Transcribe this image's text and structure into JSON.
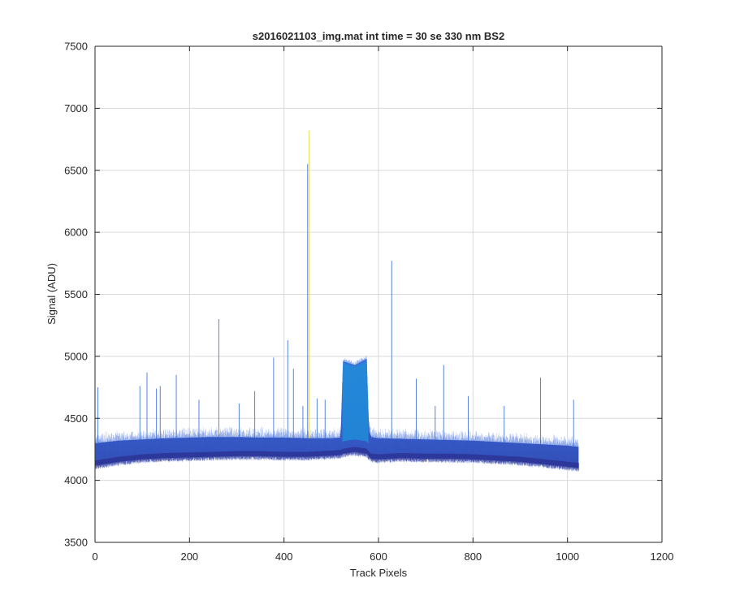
{
  "chart_data": {
    "type": "line",
    "title": "s2016021103_img.mat int time = 30 se  330 nm BS2",
    "xlabel": "Track Pixels",
    "ylabel": "Signal (ADU)",
    "xlim": [
      0,
      1200
    ],
    "ylim": [
      3500,
      7500
    ],
    "x_ticks": [
      0,
      200,
      400,
      600,
      800,
      1000,
      1200
    ],
    "y_ticks": [
      3500,
      4000,
      4500,
      5000,
      5500,
      6000,
      6500,
      7000,
      7500
    ],
    "x_tick_labels": [
      "0",
      "200",
      "400",
      "600",
      "800",
      "1000",
      "1200"
    ],
    "y_tick_labels": [
      "3500",
      "4000",
      "4500",
      "5000",
      "5500",
      "6000",
      "6500",
      "7000",
      "7500"
    ],
    "grid": true,
    "series_count_note": "many overlapping track rows rendered as a dense band",
    "band_envelope": {
      "x": [
        1,
        50,
        100,
        150,
        200,
        250,
        300,
        350,
        400,
        450,
        500,
        520,
        525,
        550,
        575,
        580,
        585,
        600,
        650,
        700,
        750,
        800,
        850,
        900,
        950,
        1000,
        1024
      ],
      "lower": [
        4120,
        4150,
        4170,
        4180,
        4185,
        4190,
        4195,
        4195,
        4190,
        4190,
        4200,
        4205,
        4215,
        4230,
        4215,
        4190,
        4175,
        4170,
        4180,
        4175,
        4175,
        4170,
        4160,
        4150,
        4130,
        4110,
        4100
      ],
      "upper": [
        4300,
        4320,
        4330,
        4340,
        4345,
        4350,
        4350,
        4345,
        4345,
        4340,
        4340,
        4345,
        4960,
        4930,
        4980,
        4400,
        4350,
        4340,
        4335,
        4330,
        4325,
        4320,
        4310,
        4300,
        4290,
        4280,
        4270
      ]
    },
    "spikes": [
      {
        "x": 6,
        "y": 4750
      },
      {
        "x": 95,
        "y": 4760
      },
      {
        "x": 110,
        "y": 4870
      },
      {
        "x": 130,
        "y": 4740
      },
      {
        "x": 138,
        "y": 4760
      },
      {
        "x": 172,
        "y": 4850
      },
      {
        "x": 220,
        "y": 4650
      },
      {
        "x": 262,
        "y": 5300
      },
      {
        "x": 305,
        "y": 4620
      },
      {
        "x": 338,
        "y": 4720
      },
      {
        "x": 378,
        "y": 4990
      },
      {
        "x": 408,
        "y": 5130
      },
      {
        "x": 420,
        "y": 4900
      },
      {
        "x": 440,
        "y": 4600
      },
      {
        "x": 450,
        "y": 6550
      },
      {
        "x": 453,
        "y": 6820
      },
      {
        "x": 470,
        "y": 4660
      },
      {
        "x": 487,
        "y": 4650
      },
      {
        "x": 628,
        "y": 5770
      },
      {
        "x": 680,
        "y": 4820
      },
      {
        "x": 720,
        "y": 4600
      },
      {
        "x": 738,
        "y": 4930
      },
      {
        "x": 790,
        "y": 4680
      },
      {
        "x": 866,
        "y": 4600
      },
      {
        "x": 943,
        "y": 4830
      },
      {
        "x": 1013,
        "y": 4650
      }
    ],
    "colors": {
      "band_main": "#2f55c8",
      "band_dark": "#2c2f8f",
      "plateau": "#1f8fd8",
      "spike_yellow": "#e8d24a",
      "axis": "#262626",
      "grid": "#d9d9d9"
    }
  }
}
